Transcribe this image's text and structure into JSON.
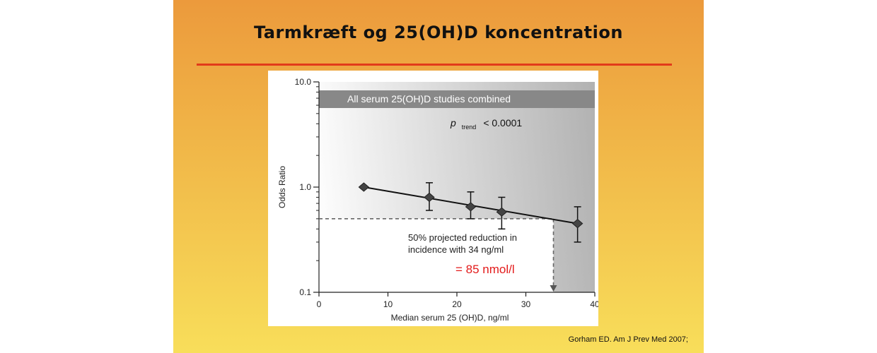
{
  "slide": {
    "title": "Tarmkræft og 25(OH)D koncentration",
    "citation": "Gorham ED. Am J Prev Med 2007;"
  },
  "chart_data": {
    "type": "scatter",
    "xlabel": "Median serum 25 (OH)D, ng/ml",
    "ylabel": "Odds Ratio",
    "xlim": [
      0,
      40
    ],
    "ylim": [
      0.1,
      10
    ],
    "yscale": "log",
    "x_ticks": [
      "0",
      "10",
      "20",
      "30",
      "40"
    ],
    "y_ticks": [
      "0.1",
      "1.0",
      "10.0"
    ],
    "grid": false,
    "banner": "All serum 25(OH)D studies combined",
    "p_trend": {
      "p": "p",
      "sub": "trend",
      "value": "< 0.0001"
    },
    "points": [
      {
        "x": 6.5,
        "y": 1.0
      },
      {
        "x": 16,
        "y": 0.8,
        "lo": 0.6,
        "hi": 1.1
      },
      {
        "x": 22,
        "y": 0.65,
        "lo": 0.5,
        "hi": 0.9
      },
      {
        "x": 26.5,
        "y": 0.58,
        "lo": 0.4,
        "hi": 0.8
      },
      {
        "x": 37.5,
        "y": 0.45,
        "lo": 0.3,
        "hi": 0.65
      }
    ],
    "trend_line": {
      "x": [
        6.5,
        37.5
      ],
      "y": [
        1.0,
        0.45
      ]
    },
    "projection": {
      "x": 34,
      "y": 0.5
    },
    "annotation_lines": [
      "50% projected reduction in",
      "incidence with 34 ng/ml"
    ],
    "annotation_red": "= 85 nmol/l",
    "colors": {
      "red": "#e31b1b",
      "marker": "#444444",
      "banner": "#888888"
    }
  }
}
